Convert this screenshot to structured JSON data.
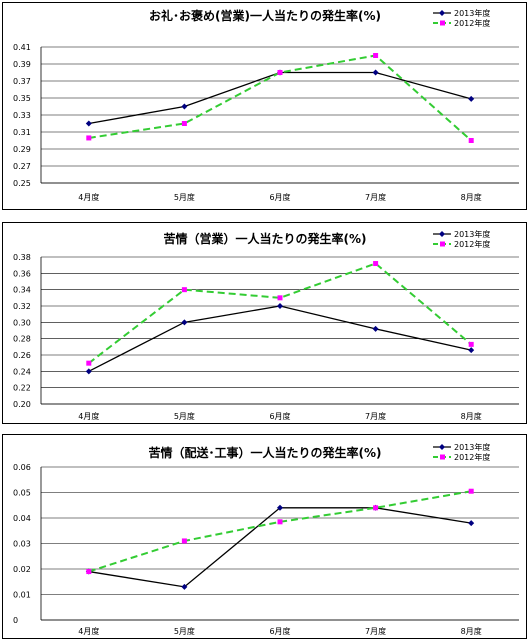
{
  "chart_data": [
    {
      "type": "line",
      "title": "お礼･お褒め(営業)一人当たりの発生率(%)",
      "categories": [
        "4月度",
        "5月度",
        "6月度",
        "7月度",
        "8月度"
      ],
      "ylim": [
        0.25,
        0.41
      ],
      "yticks": [
        "0.41",
        "0.39",
        "0.37",
        "0.35",
        "0.33",
        "0.31",
        "0.29",
        "0.27",
        "0.25"
      ],
      "grid": true,
      "legend": "top-right",
      "series": [
        {
          "name": "2013年度",
          "values": [
            0.32,
            0.34,
            0.38,
            0.38,
            0.349
          ],
          "color": "#000080"
        },
        {
          "name": "2012年度",
          "values": [
            0.303,
            0.32,
            0.38,
            0.4,
            0.3
          ],
          "color": "#33cc33"
        }
      ]
    },
    {
      "type": "line",
      "title": "苦情（営業）一人当たりの発生率(%)",
      "categories": [
        "4月度",
        "5月度",
        "6月度",
        "7月度",
        "8月度"
      ],
      "ylim": [
        0.2,
        0.38
      ],
      "yticks": [
        "0.38",
        "0.36",
        "0.34",
        "0.32",
        "0.30",
        "0.28",
        "0.26",
        "0.24",
        "0.22",
        "0.20"
      ],
      "grid": true,
      "legend": "top-right",
      "series": [
        {
          "name": "2013年度",
          "values": [
            0.24,
            0.3,
            0.32,
            0.292,
            0.266
          ],
          "color": "#000080"
        },
        {
          "name": "2012年度",
          "values": [
            0.25,
            0.34,
            0.33,
            0.372,
            0.273
          ],
          "color": "#33cc33"
        }
      ]
    },
    {
      "type": "line",
      "title": "苦情（配送･工事）一人当たりの発生率(%)",
      "categories": [
        "4月度",
        "5月度",
        "6月度",
        "7月度",
        "8月度"
      ],
      "ylim": [
        0,
        0.06
      ],
      "yticks": [
        "0.06",
        "0.05",
        "0.04",
        "0.03",
        "0.02",
        "0.01",
        "0"
      ],
      "grid": true,
      "legend": "top-right",
      "series": [
        {
          "name": "2013年度",
          "values": [
            0.019,
            0.013,
            0.044,
            0.044,
            0.038
          ],
          "color": "#000080"
        },
        {
          "name": "2012年度",
          "values": [
            0.019,
            0.031,
            0.0385,
            0.044,
            0.0505
          ],
          "color": "#33cc33"
        }
      ]
    }
  ],
  "colors": {
    "marker2012": "#ff00ff",
    "marker2013": "#000080"
  }
}
